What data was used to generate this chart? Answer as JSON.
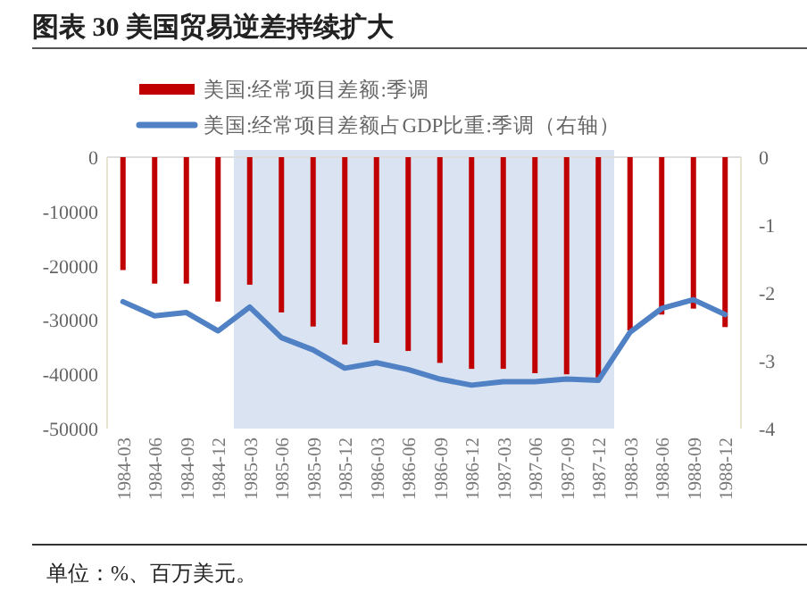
{
  "chart_data": {
    "type": "bar",
    "title": "图表 30 美国贸易逆差持续扩大",
    "categories": [
      "1984-03",
      "1984-06",
      "1984-09",
      "1984-12",
      "1985-03",
      "1985-06",
      "1985-09",
      "1985-12",
      "1986-03",
      "1986-06",
      "1986-09",
      "1986-12",
      "1987-03",
      "1987-06",
      "1987-09",
      "1987-12",
      "1988-03",
      "1988-06",
      "1988-09",
      "1988-12"
    ],
    "series": [
      {
        "name": "美国:经常项目差额:季调",
        "color": "#c00000",
        "values": [
          -20800,
          -23300,
          -23300,
          -26600,
          -23500,
          -28600,
          -31200,
          -34500,
          -34200,
          -35700,
          -37900,
          -39000,
          -39000,
          -39800,
          -40000,
          -40600,
          -31900,
          -29000,
          -27900,
          -31300
        ]
      },
      {
        "name": "美国:经常项目差额占GDP比重:季调（右轴）",
        "type": "line",
        "axis": "y2",
        "color": "#4f81c4",
        "values": [
          -2.13,
          -2.34,
          -2.29,
          -2.56,
          -2.21,
          -2.66,
          -2.84,
          -3.11,
          -3.03,
          -3.13,
          -3.27,
          -3.36,
          -3.31,
          -3.31,
          -3.27,
          -3.29,
          -2.58,
          -2.23,
          -2.1,
          -2.32
        ]
      }
    ],
    "ylim": [
      -50000,
      0
    ],
    "yticks": [
      -50000,
      -40000,
      -30000,
      -20000,
      -10000,
      0
    ],
    "y2lim": [
      -4,
      0
    ],
    "y2ticks": [
      -4,
      -3,
      -2,
      -1,
      0
    ],
    "bands": [
      {
        "axis": "x",
        "from": "1985-03",
        "to": "1987-12",
        "color": "#dae3f1"
      }
    ],
    "legend": "top",
    "grid": false,
    "annotations": [
      "单位：%、百万美元。"
    ]
  }
}
